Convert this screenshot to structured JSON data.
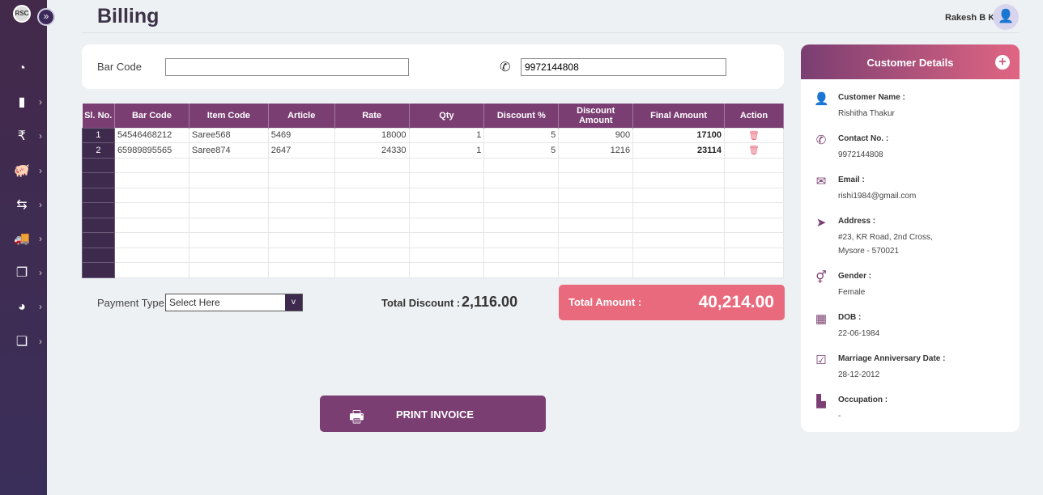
{
  "app": {
    "logo": "RSC",
    "user_name": "Rakesh B K",
    "page_title": "Billing"
  },
  "sidebar": {
    "items": [
      {
        "icon": "dashboard-icon",
        "glyph": "◔",
        "chevron": false
      },
      {
        "icon": "bookmark-icon",
        "glyph": "▮",
        "chevron": true
      },
      {
        "icon": "rupee-document-icon",
        "glyph": "₹",
        "chevron": true
      },
      {
        "icon": "piggy-bank-icon",
        "glyph": "🐖",
        "chevron": true
      },
      {
        "icon": "exchange-icon",
        "glyph": "⇆",
        "chevron": true
      },
      {
        "icon": "truck-icon",
        "glyph": "🚚",
        "chevron": true
      },
      {
        "icon": "copy-document-icon",
        "glyph": "❐",
        "chevron": true
      },
      {
        "icon": "pie-chart-icon",
        "glyph": "◕",
        "chevron": true
      },
      {
        "icon": "files-icon",
        "glyph": "❏",
        "chevron": true
      }
    ]
  },
  "search": {
    "barcode_label": "Bar Code",
    "barcode_value": "",
    "phone_value": "9972144808"
  },
  "table": {
    "headers": [
      "Sl. No.",
      "Bar Code",
      "Item Code",
      "Article",
      "Rate",
      "Qty",
      "Discount %",
      "Discount Amount",
      "Final Amount",
      "Action"
    ],
    "rows": [
      {
        "sl": "1",
        "barcode": "54546468212",
        "item_code": "Saree568",
        "article": "5469",
        "rate": "18000",
        "qty": "1",
        "disc_pct": "5",
        "disc_amt": "900",
        "final": "17100"
      },
      {
        "sl": "2",
        "barcode": "65989895565",
        "item_code": "Saree874",
        "article": "2647",
        "rate": "24330",
        "qty": "1",
        "disc_pct": "5",
        "disc_amt": "1216",
        "final": "23114"
      }
    ],
    "empty_rows": 8
  },
  "payment": {
    "label": "Payment Type",
    "selected": "Select Here",
    "arrow": "v"
  },
  "totals": {
    "discount_label": "Total Discount :",
    "discount_value": "2,116.00",
    "amount_label": "Total Amount :",
    "amount_value": "40,214.00"
  },
  "print_label": "PRINT INVOICE",
  "customer": {
    "title": "Customer Details",
    "fields": [
      {
        "icon": "user-icon",
        "glyph": "👤",
        "label": "Customer Name :",
        "value": "Rishitha Thakur"
      },
      {
        "icon": "phone-icon",
        "glyph": "✆",
        "label": "Contact No. :",
        "value": "9972144808"
      },
      {
        "icon": "envelope-icon",
        "glyph": "✉",
        "label": "Email :",
        "value": "rishi1984@gmail.com"
      },
      {
        "icon": "location-arrow-icon",
        "glyph": "➤",
        "label": "Address :",
        "value": "#23, KR Road, 2nd Cross,\nMysore - 570021"
      },
      {
        "icon": "gender-icon",
        "glyph": "⚥",
        "label": "Gender :",
        "value": "Female"
      },
      {
        "icon": "calendar-icon",
        "glyph": "▦",
        "label": "DOB :",
        "value": "22-06-1984"
      },
      {
        "icon": "calendar-check-icon",
        "glyph": "☑",
        "label": "Marriage Anniversary Date :",
        "value": "28-12-2012"
      },
      {
        "icon": "file-icon",
        "glyph": "▙",
        "label": "Occupation :",
        "value": "-"
      }
    ]
  },
  "colors": {
    "primary": "#7a3e72",
    "accent": "#ea6a7d",
    "sidebar": "#3d2a4d"
  }
}
